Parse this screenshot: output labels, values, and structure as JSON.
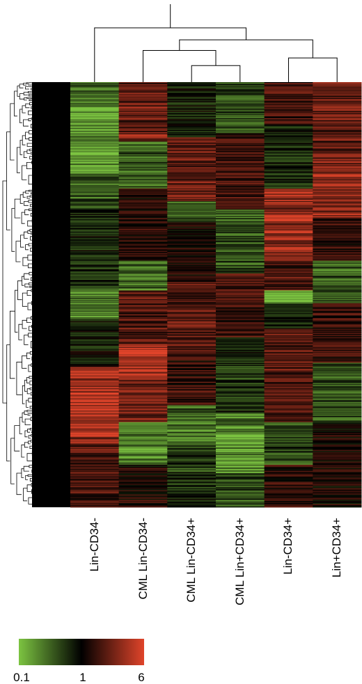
{
  "chart_data": {
    "type": "heatmap",
    "title": "",
    "columns": [
      "Lin-CD34-",
      "CML Lin-CD34-",
      "CML Lin-CD34+",
      "CML Lin+CD34+",
      "Lin-CD34+",
      "Lin+CD34+"
    ],
    "column_order_note": "",
    "row_count": 400,
    "color_scale": {
      "colors": [
        "#7cc441",
        "#000000",
        "#e0442a"
      ],
      "ticks": [
        "0.1",
        "1",
        "6"
      ],
      "min": 0.1,
      "mid": 1,
      "max": 6
    },
    "column_profiles": [
      [
        {
          "from": 0.0,
          "to": 0.06,
          "level": -0.6
        },
        {
          "from": 0.06,
          "to": 0.22,
          "level": -0.95
        },
        {
          "from": 0.22,
          "to": 0.3,
          "level": -0.5
        },
        {
          "from": 0.3,
          "to": 0.48,
          "level": -0.25
        },
        {
          "from": 0.48,
          "to": 0.56,
          "level": -0.7
        },
        {
          "from": 0.56,
          "to": 0.67,
          "level": -0.1
        },
        {
          "from": 0.67,
          "to": 0.85,
          "level": 0.85
        },
        {
          "from": 0.85,
          "to": 1.0,
          "level": 0.4
        }
      ],
      [
        {
          "from": 0.0,
          "to": 0.14,
          "level": 0.55
        },
        {
          "from": 0.14,
          "to": 0.25,
          "level": -0.6
        },
        {
          "from": 0.25,
          "to": 0.42,
          "level": 0.2
        },
        {
          "from": 0.42,
          "to": 0.49,
          "level": -0.65
        },
        {
          "from": 0.49,
          "to": 0.62,
          "level": 0.45
        },
        {
          "from": 0.62,
          "to": 0.7,
          "level": 0.95
        },
        {
          "from": 0.7,
          "to": 0.8,
          "level": 0.55
        },
        {
          "from": 0.8,
          "to": 0.9,
          "level": -0.75
        },
        {
          "from": 0.9,
          "to": 1.0,
          "level": 0.15
        }
      ],
      [
        {
          "from": 0.0,
          "to": 0.13,
          "level": -0.15
        },
        {
          "from": 0.13,
          "to": 0.28,
          "level": 0.5
        },
        {
          "from": 0.28,
          "to": 0.33,
          "level": -0.55
        },
        {
          "from": 0.33,
          "to": 0.47,
          "level": 0.1
        },
        {
          "from": 0.47,
          "to": 0.62,
          "level": 0.45
        },
        {
          "from": 0.62,
          "to": 0.76,
          "level": 0.25
        },
        {
          "from": 0.76,
          "to": 0.86,
          "level": -0.6
        },
        {
          "from": 0.86,
          "to": 1.0,
          "level": -0.3
        }
      ],
      [
        {
          "from": 0.0,
          "to": 0.12,
          "level": -0.4
        },
        {
          "from": 0.12,
          "to": 0.3,
          "level": 0.3
        },
        {
          "from": 0.3,
          "to": 0.45,
          "level": -0.45
        },
        {
          "from": 0.45,
          "to": 0.6,
          "level": 0.35
        },
        {
          "from": 0.6,
          "to": 0.78,
          "level": -0.3
        },
        {
          "from": 0.78,
          "to": 0.92,
          "level": -0.9
        },
        {
          "from": 0.92,
          "to": 1.0,
          "level": -0.5
        }
      ],
      [
        {
          "from": 0.0,
          "to": 0.1,
          "level": 0.35
        },
        {
          "from": 0.1,
          "to": 0.25,
          "level": -0.25
        },
        {
          "from": 0.25,
          "to": 0.42,
          "level": 0.75
        },
        {
          "from": 0.42,
          "to": 0.49,
          "level": 0.35
        },
        {
          "from": 0.49,
          "to": 0.52,
          "level": -0.95
        },
        {
          "from": 0.52,
          "to": 0.58,
          "level": -0.3
        },
        {
          "from": 0.58,
          "to": 0.8,
          "level": 0.45
        },
        {
          "from": 0.8,
          "to": 0.9,
          "level": -0.4
        },
        {
          "from": 0.9,
          "to": 1.0,
          "level": 0.2
        }
      ],
      [
        {
          "from": 0.0,
          "to": 0.18,
          "level": 0.55
        },
        {
          "from": 0.18,
          "to": 0.32,
          "level": 0.7
        },
        {
          "from": 0.32,
          "to": 0.42,
          "level": 0.3
        },
        {
          "from": 0.42,
          "to": 0.52,
          "level": -0.55
        },
        {
          "from": 0.52,
          "to": 0.66,
          "level": 0.3
        },
        {
          "from": 0.66,
          "to": 0.8,
          "level": -0.45
        },
        {
          "from": 0.8,
          "to": 1.0,
          "level": 0.1
        }
      ]
    ],
    "column_dendrogram": {
      "leaf_order": [
        "Lin-CD34-",
        "CML Lin-CD34-",
        "CML Lin-CD34+",
        "CML Lin+CD34+",
        "Lin-CD34+",
        "Lin+CD34+"
      ],
      "merges": [
        {
          "left": "CML Lin-CD34+",
          "right": "CML Lin+CD34+",
          "height": 0.22
        },
        {
          "left": "Lin-CD34+",
          "right": "Lin+CD34+",
          "height": 0.32
        },
        {
          "left": "CML Lin-CD34-",
          "right": "m1",
          "height": 0.42
        },
        {
          "left": "m3",
          "right": "m2",
          "height": 0.56
        },
        {
          "left": "Lin-CD34-",
          "right": "m4",
          "height": 0.72
        }
      ]
    },
    "row_dendrogram": true,
    "legend": "bottom-left"
  }
}
